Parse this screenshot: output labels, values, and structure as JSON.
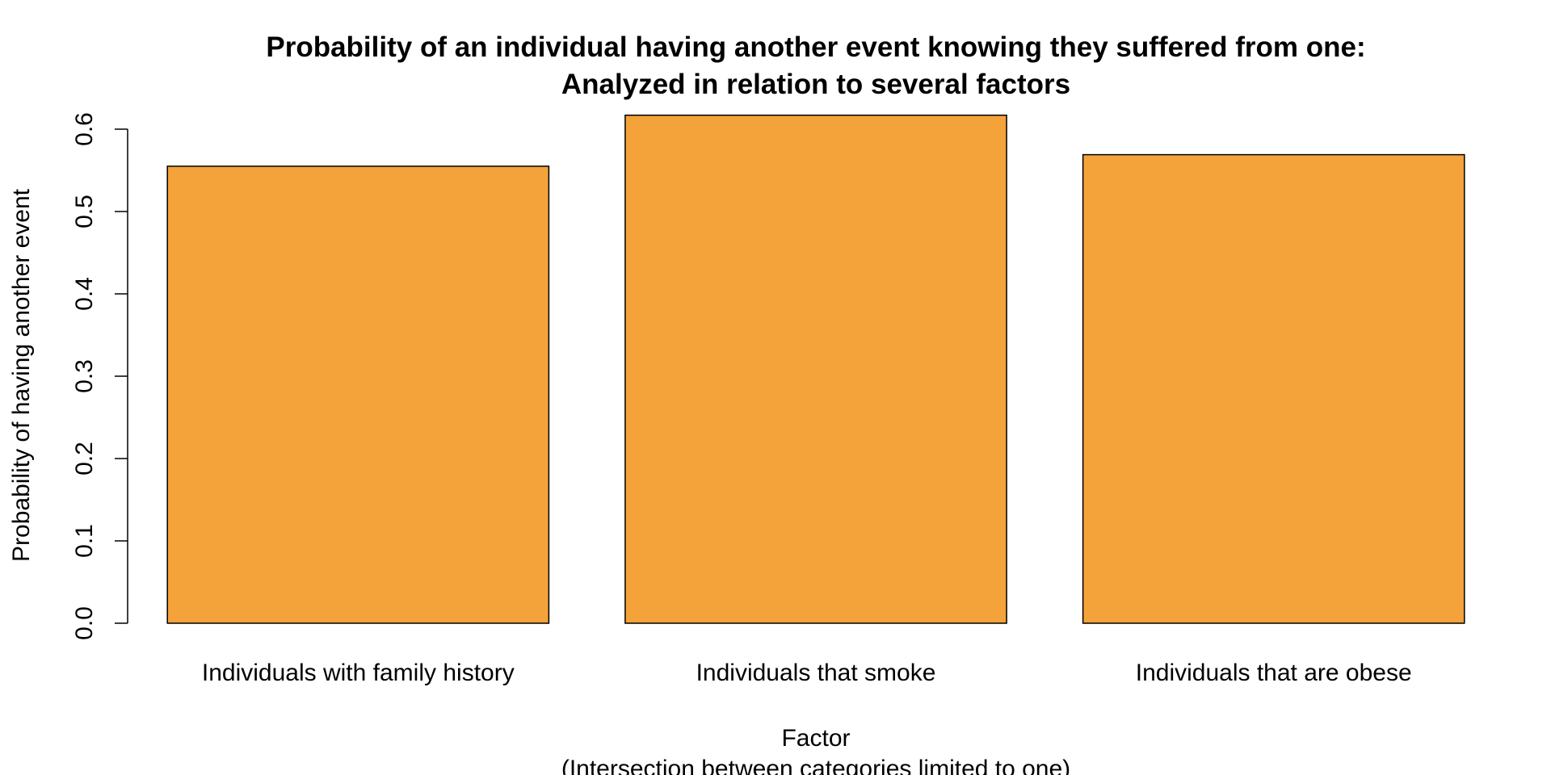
{
  "chart_data": {
    "type": "bar",
    "title": [
      "Probability of an individual having another event knowing they suffered from one:",
      "Analyzed in relation to several factors"
    ],
    "xlabel": [
      "Factor",
      "(Intersection between categories limited to one)"
    ],
    "ylabel": "Probability of having another event",
    "categories": [
      "Individuals with family history",
      "Individuals that smoke",
      "Individuals that are obese"
    ],
    "values": [
      0.555,
      0.617,
      0.569
    ],
    "ylim": [
      0,
      0.6
    ],
    "y_ticks": [
      0.0,
      0.1,
      0.2,
      0.3,
      0.4,
      0.5,
      0.6
    ],
    "y_tick_labels": [
      "0.0",
      "0.1",
      "0.2",
      "0.3",
      "0.4",
      "0.5",
      "0.6"
    ],
    "bar_color": "#F4A23A",
    "grid": false,
    "legend": "none"
  }
}
